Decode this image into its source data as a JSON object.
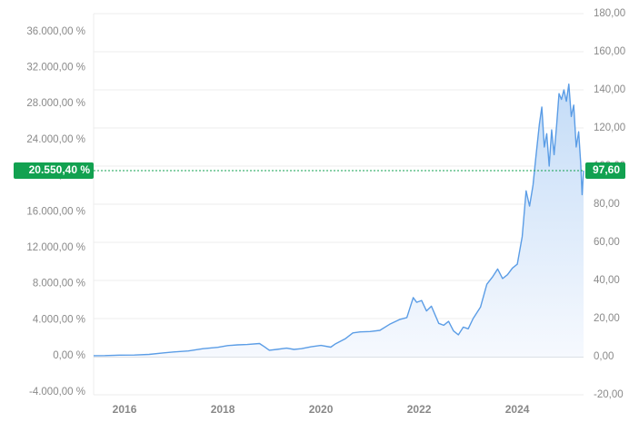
{
  "chart_data": {
    "type": "line",
    "x": [
      2015.37,
      2015.6,
      2015.9,
      2016.2,
      2016.5,
      2016.8,
      2017.0,
      2017.3,
      2017.6,
      2017.9,
      2018.1,
      2018.3,
      2018.5,
      2018.75,
      2018.85,
      2018.95,
      2019.1,
      2019.3,
      2019.45,
      2019.6,
      2019.8,
      2020.0,
      2020.2,
      2020.3,
      2020.5,
      2020.65,
      2020.8,
      2021.0,
      2021.2,
      2021.4,
      2021.6,
      2021.75,
      2021.88,
      2021.95,
      2022.05,
      2022.15,
      2022.25,
      2022.4,
      2022.5,
      2022.6,
      2022.7,
      2022.8,
      2022.9,
      2023.0,
      2023.1,
      2023.25,
      2023.38,
      2023.5,
      2023.6,
      2023.7,
      2023.8,
      2023.9,
      2024.0,
      2024.1,
      2024.18,
      2024.25,
      2024.32,
      2024.38,
      2024.45,
      2024.5,
      2024.55,
      2024.6,
      2024.65,
      2024.7,
      2024.75,
      2024.8,
      2024.85,
      2024.9,
      2024.95,
      2025.0,
      2025.05,
      2025.1,
      2025.15,
      2025.2,
      2025.25,
      2025.29,
      2025.32,
      2025.35
    ],
    "series": [
      {
        "color": "#5b9de6",
        "axis": "y2",
        "values": [
          0.5,
          0.55,
          0.8,
          0.85,
          1.2,
          2.0,
          2.5,
          3.0,
          4.2,
          4.9,
          5.8,
          6.2,
          6.4,
          6.9,
          5.2,
          3.4,
          3.8,
          4.5,
          3.8,
          4.2,
          5.2,
          5.9,
          5.0,
          6.8,
          9.5,
          12.5,
          13.0,
          13.2,
          13.8,
          17.0,
          19.5,
          20.5,
          31.0,
          28.5,
          29.5,
          24.0,
          26.5,
          17.5,
          16.5,
          18.5,
          13.5,
          11.5,
          15.5,
          14.6,
          20.0,
          26.0,
          38.0,
          42.0,
          46.0,
          41.0,
          43.0,
          46.5,
          48.5,
          63.0,
          87.0,
          79.0,
          90.0,
          105.0,
          122.0,
          131.0,
          110.0,
          117.0,
          100.0,
          119.0,
          106.0,
          121.0,
          138.0,
          135.0,
          140.0,
          134.0,
          143.0,
          126.0,
          132.0,
          110.0,
          118.0,
          102.0,
          85.0,
          97.6
        ]
      }
    ],
    "xlim": [
      2015.37,
      2025.35
    ],
    "xticks": [
      2016,
      2018,
      2020,
      2022,
      2024
    ],
    "ylim": [
      -4330,
      37990
    ],
    "yticks": [
      {
        "value": -4000,
        "label": "-4.000,00 %"
      },
      {
        "value": 0,
        "label": "0,00 %"
      },
      {
        "value": 4000,
        "label": "4.000,00 %"
      },
      {
        "value": 8000,
        "label": "8.000,00 %"
      },
      {
        "value": 12000,
        "label": "12.000,00 %"
      },
      {
        "value": 16000,
        "label": "16.000,00 %"
      },
      {
        "value": 20000,
        "label": "20.000,00 %"
      },
      {
        "value": 24000,
        "label": "24.000,00 %"
      },
      {
        "value": 28000,
        "label": "28.000,00 %"
      },
      {
        "value": 32000,
        "label": "32.000,00 %"
      },
      {
        "value": 36000,
        "label": "36.000,00 %"
      }
    ],
    "y2lim": [
      -20,
      180
    ],
    "y2ticks": [
      {
        "value": -20,
        "label": "-20,00"
      },
      {
        "value": 0,
        "label": "0,00"
      },
      {
        "value": 20,
        "label": "20,00"
      },
      {
        "value": 40,
        "label": "40,00"
      },
      {
        "value": 60,
        "label": "60,00"
      },
      {
        "value": 80,
        "label": "80,00"
      },
      {
        "value": 100,
        "label": "100,00"
      },
      {
        "value": 120,
        "label": "120,00"
      },
      {
        "value": 140,
        "label": "140,00"
      },
      {
        "value": 160,
        "label": "160,00"
      },
      {
        "value": 180,
        "label": "180,00"
      }
    ],
    "current": {
      "y": {
        "value": 20550.4,
        "label": "20.550,40 %"
      },
      "y2": {
        "value": 97.6,
        "label": "97,60"
      }
    },
    "tag_color": "#12a150",
    "grid": true
  }
}
